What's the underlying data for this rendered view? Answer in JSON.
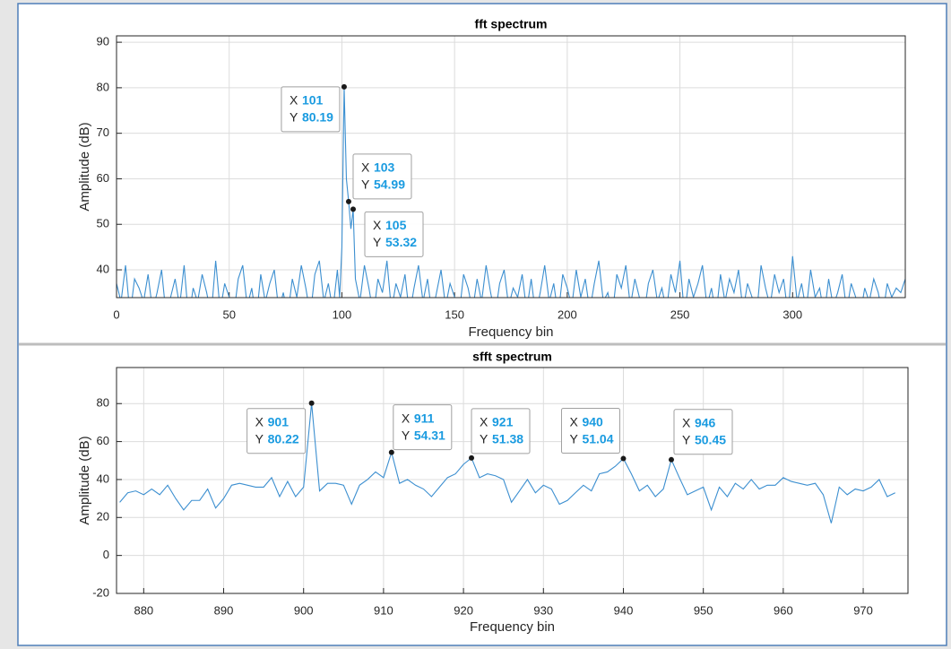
{
  "chart_data": [
    {
      "type": "line",
      "title": "fft spectrum",
      "xlabel": "Frequency bin",
      "ylabel": "Amplitude (dB)",
      "color": "#3c8fd0",
      "xlim": [
        0,
        350
      ],
      "ylim": [
        33.9,
        91.4
      ],
      "xticks": [
        0,
        50,
        100,
        150,
        200,
        250,
        300
      ],
      "yticks": [
        40,
        50,
        60,
        70,
        80,
        90
      ],
      "grid": true,
      "x": [
        0,
        2,
        4,
        6,
        8,
        10,
        12,
        14,
        16,
        18,
        20,
        22,
        24,
        26,
        28,
        30,
        32,
        34,
        36,
        38,
        40,
        42,
        44,
        46,
        48,
        50,
        52,
        54,
        56,
        58,
        60,
        62,
        64,
        66,
        68,
        70,
        72,
        74,
        76,
        78,
        80,
        82,
        84,
        86,
        88,
        90,
        92,
        94,
        96,
        98,
        99,
        100,
        101,
        102,
        103,
        104,
        105,
        106,
        108,
        110,
        112,
        114,
        116,
        118,
        120,
        122,
        124,
        126,
        128,
        130,
        132,
        134,
        136,
        138,
        140,
        142,
        144,
        146,
        148,
        150,
        152,
        154,
        156,
        158,
        160,
        162,
        164,
        166,
        168,
        170,
        172,
        174,
        176,
        178,
        180,
        182,
        184,
        186,
        188,
        190,
        192,
        194,
        196,
        198,
        200,
        202,
        204,
        206,
        208,
        210,
        212,
        214,
        216,
        218,
        220,
        222,
        224,
        226,
        228,
        230,
        232,
        234,
        236,
        238,
        240,
        242,
        244,
        246,
        248,
        250,
        252,
        254,
        256,
        258,
        260,
        262,
        264,
        266,
        268,
        270,
        272,
        274,
        276,
        278,
        280,
        282,
        284,
        286,
        288,
        290,
        292,
        294,
        296,
        298,
        300,
        302,
        304,
        306,
        308,
        310,
        312,
        314,
        316,
        318,
        320,
        322,
        324,
        326,
        328,
        330,
        332,
        334,
        336,
        338,
        340,
        342,
        344,
        346,
        348,
        350
      ],
      "values": [
        37,
        33,
        41,
        30,
        38,
        36,
        33,
        39,
        31,
        35,
        40,
        30,
        34,
        38,
        32,
        41,
        29,
        36,
        33,
        39,
        35,
        30,
        42,
        31,
        37,
        34,
        30,
        38,
        41,
        32,
        36,
        29,
        39,
        33,
        37,
        40,
        31,
        35,
        30,
        38,
        34,
        41,
        36,
        30,
        39,
        42,
        33,
        37,
        31,
        40,
        34,
        45,
        80.19,
        60,
        54.99,
        49,
        53.32,
        38,
        33,
        41,
        36,
        30,
        38,
        35,
        42,
        31,
        37,
        34,
        39,
        30,
        36,
        41,
        33,
        38,
        30,
        35,
        40,
        32,
        37,
        34,
        30,
        39,
        36,
        31,
        38,
        33,
        41,
        35,
        30,
        37,
        40,
        32,
        36,
        34,
        39,
        31,
        38,
        30,
        35,
        41,
        33,
        37,
        30,
        39,
        36,
        32,
        40,
        34,
        38,
        31,
        37,
        42,
        33,
        35,
        30,
        39,
        36,
        41,
        32,
        38,
        34,
        30,
        37,
        40,
        33,
        36,
        31,
        39,
        35,
        42,
        30,
        38,
        34,
        37,
        41,
        32,
        36,
        30,
        39,
        33,
        38,
        35,
        40,
        31,
        37,
        34,
        30,
        41,
        36,
        32,
        39,
        35,
        38,
        30,
        43,
        33,
        37,
        31,
        40,
        34,
        36,
        30,
        38,
        32,
        35,
        39,
        31,
        37,
        34,
        30,
        36,
        33,
        38,
        35,
        30,
        37,
        34,
        36,
        35,
        38
      ],
      "datatip_labels": [
        "X",
        "Y"
      ],
      "datatips": [
        {
          "x": 101,
          "y": 80.19
        },
        {
          "x": 103,
          "y": 54.99
        },
        {
          "x": 105,
          "y": 53.32
        }
      ]
    },
    {
      "type": "line",
      "title": "sfft spectrum",
      "xlabel": "Frequency bin",
      "ylabel": "Amplitude (dB)",
      "color": "#3c8fd0",
      "xlim": [
        876.6,
        975.6
      ],
      "ylim": [
        -20,
        99
      ],
      "xticks": [
        880,
        890,
        900,
        910,
        920,
        930,
        940,
        950,
        960,
        970
      ],
      "yticks": [
        -20,
        0,
        20,
        40,
        60,
        80
      ],
      "grid": true,
      "x": [
        877,
        878,
        879,
        880,
        881,
        882,
        883,
        884,
        885,
        886,
        887,
        888,
        889,
        890,
        891,
        892,
        893,
        894,
        895,
        896,
        897,
        898,
        899,
        900,
        901,
        902,
        903,
        904,
        905,
        906,
        907,
        908,
        909,
        910,
        911,
        912,
        913,
        914,
        915,
        916,
        917,
        918,
        919,
        920,
        921,
        922,
        923,
        924,
        925,
        926,
        927,
        928,
        929,
        930,
        931,
        932,
        933,
        934,
        935,
        936,
        937,
        938,
        939,
        940,
        941,
        942,
        943,
        944,
        945,
        946,
        947,
        948,
        949,
        950,
        951,
        952,
        953,
        954,
        955,
        956,
        957,
        958,
        959,
        960,
        961,
        962,
        963,
        964,
        965,
        966,
        967,
        968,
        969,
        970,
        971,
        972,
        973,
        974
      ],
      "values": [
        28,
        33,
        34,
        32,
        35,
        32,
        37,
        30,
        24,
        29,
        29,
        35,
        25,
        30,
        37,
        38,
        37,
        36,
        36,
        41,
        31,
        39,
        31,
        36,
        80.22,
        34,
        38,
        38,
        37,
        27,
        37,
        40,
        44,
        41,
        54.31,
        38,
        40,
        37,
        35,
        31,
        36,
        41,
        43,
        48,
        51.38,
        41,
        43,
        42,
        40,
        28,
        34,
        40,
        33,
        37,
        35,
        27,
        29,
        33,
        37,
        34,
        43,
        44,
        47,
        51.04,
        43,
        34,
        37,
        31,
        35,
        50.45,
        41,
        32,
        34,
        36,
        24,
        36,
        31,
        38,
        35,
        40,
        35,
        37,
        37,
        41,
        39,
        38,
        37,
        38,
        32,
        17,
        36,
        32,
        35,
        34,
        36,
        40,
        31,
        33
      ],
      "datatip_labels": [
        "X",
        "Y"
      ],
      "datatips": [
        {
          "x": 901,
          "y": 80.22
        },
        {
          "x": 911,
          "y": 54.31
        },
        {
          "x": 921,
          "y": 51.38
        },
        {
          "x": 940,
          "y": 51.04
        },
        {
          "x": 946,
          "y": 50.45
        }
      ]
    }
  ]
}
